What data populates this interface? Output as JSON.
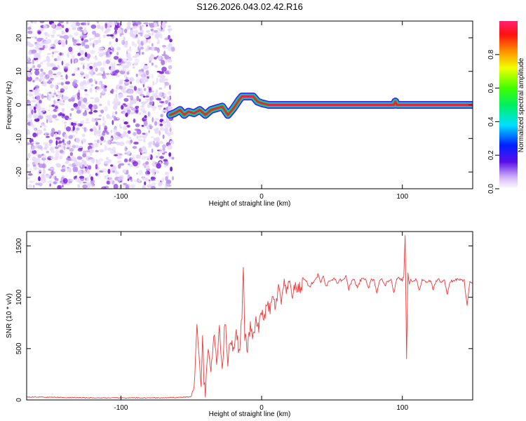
{
  "title": "S126.2026.043.02.42.R16",
  "colors": {
    "noise_light": "#e6d8fa",
    "noise_mid": "#b890ee",
    "noise_dark": "#7a1fd8",
    "trace_core": "#e0264a",
    "trace_mid": "#19d41f",
    "trace_edge": "#19a8ff",
    "trace_halo": "#3a20e0",
    "snr_line": "#ee3b3b"
  },
  "chart_data": [
    {
      "type": "heatmap",
      "title": "S126.2026.043.02.42.R16",
      "xlabel": "Height of straight line (km)",
      "ylabel": "Frequency (Hz)",
      "xlim": [
        -167,
        150
      ],
      "ylim": [
        -25,
        25
      ],
      "xticks": [
        -100,
        0,
        100
      ],
      "yticks": [
        -20,
        -10,
        0,
        10,
        20
      ],
      "noise_region_x": [
        -167,
        -63
      ],
      "ridge": {
        "x": [
          -65,
          -62,
          -58,
          -55,
          -52,
          -48,
          -44,
          -40,
          -36,
          -32,
          -28,
          -24,
          -20,
          -16,
          -14,
          -10,
          -6,
          -3,
          0,
          5,
          15,
          40,
          60,
          80,
          94,
          95,
          96,
          100,
          120,
          150
        ],
        "freq": [
          -3,
          -2.5,
          -1.5,
          -3,
          -2,
          -2.5,
          -1.5,
          -3,
          -1.5,
          -1,
          -0.5,
          -3,
          -1,
          1.5,
          2.5,
          2.5,
          2.5,
          1,
          0.5,
          0,
          0,
          0,
          0,
          0,
          0,
          1,
          0,
          0,
          0,
          0
        ]
      },
      "colorbar": {
        "label": "Normalized spectral amplitude",
        "range": [
          0,
          1
        ],
        "ticks": [
          0.0,
          0.2,
          0.4,
          0.6,
          0.8
        ],
        "tick_labels": [
          "0.0",
          "0.2",
          "0.4",
          "0.6",
          "0.8"
        ]
      }
    },
    {
      "type": "line",
      "xlabel": "Height of straight line (km)",
      "ylabel": "SNR (10 * v/v)",
      "xlim": [
        -167,
        150
      ],
      "ylim": [
        0,
        1640
      ],
      "xticks": [
        -100,
        0,
        100
      ],
      "yticks": [
        0,
        500,
        1000,
        1500
      ],
      "series": [
        {
          "name": "SNR",
          "x": [
            -167,
            -120,
            -70,
            -50,
            -48,
            -46,
            -44,
            -43,
            -42,
            -41,
            -40,
            -38,
            -36,
            -34,
            -32,
            -30,
            -28,
            -26,
            -24,
            -22,
            -20,
            -18,
            -16,
            -14,
            -13,
            -12,
            -10,
            -8,
            -6,
            -4,
            -2,
            0,
            2,
            4,
            6,
            8,
            10,
            12,
            14,
            16,
            18,
            20,
            22,
            24,
            26,
            28,
            30,
            32,
            34,
            36,
            38,
            40,
            42,
            44,
            46,
            48,
            50,
            52,
            54,
            56,
            58,
            60,
            62,
            64,
            66,
            68,
            70,
            72,
            74,
            76,
            78,
            80,
            82,
            84,
            86,
            88,
            90,
            92,
            94,
            96,
            98,
            100,
            101,
            102,
            103,
            104,
            105,
            106,
            108,
            110,
            112,
            114,
            116,
            118,
            120,
            122,
            124,
            126,
            128,
            130,
            132,
            134,
            136,
            138,
            140,
            142,
            144,
            146,
            148,
            150
          ],
          "y": [
            30,
            20,
            20,
            30,
            150,
            700,
            300,
            100,
            650,
            200,
            30,
            550,
            250,
            650,
            350,
            720,
            300,
            780,
            380,
            600,
            480,
            700,
            450,
            820,
            1300,
            620,
            500,
            720,
            600,
            760,
            700,
            850,
            820,
            920,
            880,
            1000,
            900,
            1080,
            960,
            1120,
            1050,
            1150,
            1020,
            1100,
            1080,
            1100,
            1180,
            1150,
            1100,
            1140,
            1170,
            1220,
            1150,
            1200,
            1100,
            1170,
            1160,
            1180,
            1130,
            1170,
            1160,
            1200,
            1080,
            1160,
            1170,
            1080,
            1160,
            1180,
            1170,
            1090,
            1170,
            1160,
            1040,
            1160,
            1170,
            1120,
            1160,
            1180,
            1050,
            1170,
            1190,
            1160,
            1200,
            1600,
            400,
            1250,
            1120,
            1170,
            1160,
            1180,
            1060,
            1170,
            1160,
            1150,
            1170,
            1070,
            1160,
            1170,
            1150,
            1160,
            1030,
            1160,
            1150,
            1170,
            1180,
            1160,
            1160,
            920,
            1160,
            1140
          ]
        }
      ]
    }
  ]
}
